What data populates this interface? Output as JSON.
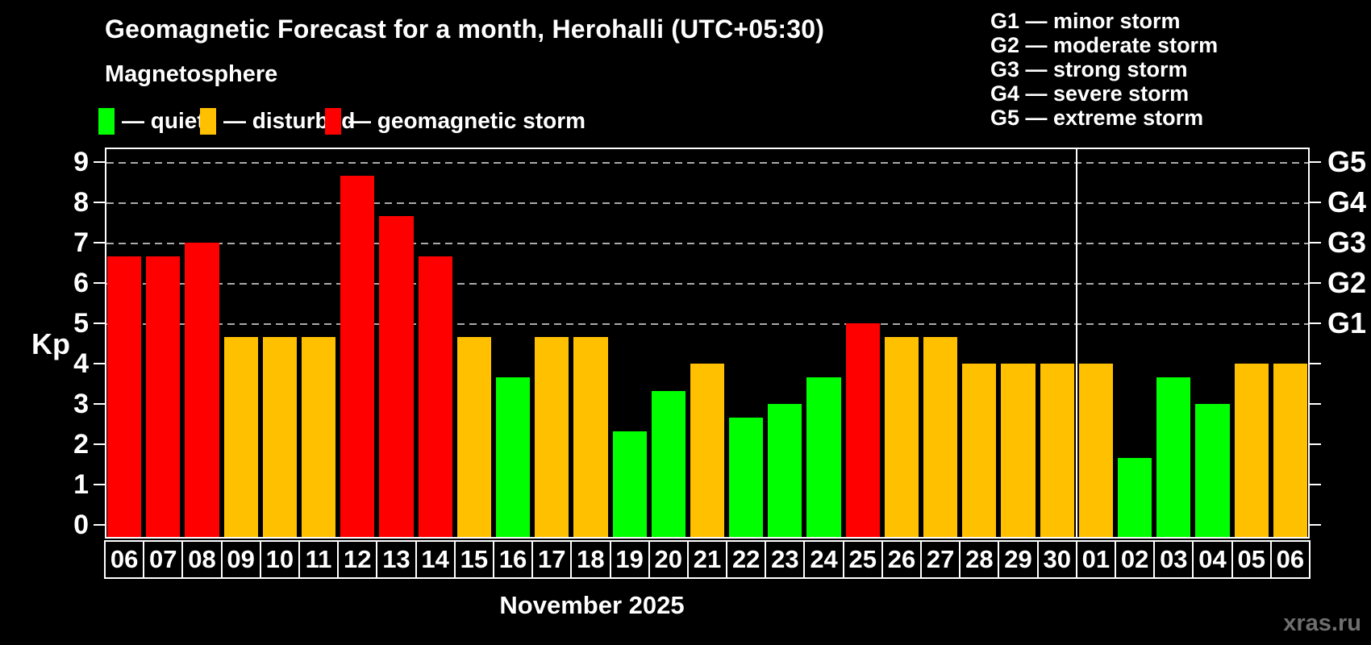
{
  "title": "Geomagnetic Forecast for a month, Herohalli (UTC+05:30)",
  "subtitle": "Magnetosphere",
  "legend": {
    "items": [
      {
        "key": "quiet",
        "label": "— quiet",
        "color": "#00ff00"
      },
      {
        "key": "disturbed",
        "label": "— disturbed",
        "color": "#ffc000"
      },
      {
        "key": "storm",
        "label": "— geomagnetic storm",
        "color": "#ff0000"
      }
    ]
  },
  "g_legend": [
    "G1 — minor storm",
    "G2 — moderate storm",
    "G3 — strong storm",
    "G4 — severe storm",
    "G5 — extreme storm"
  ],
  "axes": {
    "y_label": "Kp",
    "y_ticks": [
      0,
      1,
      2,
      3,
      4,
      5,
      6,
      7,
      8,
      9
    ],
    "gridline_kp": [
      5,
      6,
      7,
      8,
      9
    ],
    "right_labels": [
      {
        "text": "G1",
        "kp": 5
      },
      {
        "text": "G2",
        "kp": 6
      },
      {
        "text": "G3",
        "kp": 7
      },
      {
        "text": "G4",
        "kp": 8
      },
      {
        "text": "G5",
        "kp": 9
      }
    ]
  },
  "x_axis": {
    "month_label": "November 2025",
    "separator_after_index": 24
  },
  "watermark": "xras.ru",
  "chart_data": {
    "type": "bar",
    "title": "Geomagnetic Forecast for a month, Herohalli (UTC+05:30)",
    "ylabel": "Kp",
    "ylim": [
      0,
      9.4
    ],
    "grid": "horizontal dashed at Kp 5,6,7,8,9",
    "legend_position": "top-left",
    "categories": [
      "06",
      "07",
      "08",
      "09",
      "10",
      "11",
      "12",
      "13",
      "14",
      "15",
      "16",
      "17",
      "18",
      "19",
      "20",
      "21",
      "22",
      "23",
      "24",
      "25",
      "26",
      "27",
      "28",
      "29",
      "30",
      "01",
      "02",
      "03",
      "04",
      "05",
      "06"
    ],
    "values": [
      6.67,
      6.67,
      7,
      4.67,
      4.67,
      4.67,
      8.67,
      7.67,
      6.67,
      4.67,
      3.67,
      4.67,
      4.67,
      2.33,
      3.33,
      4,
      2.67,
      3,
      3.67,
      5,
      4.67,
      4.67,
      4,
      4,
      4,
      4,
      1.67,
      3.67,
      3,
      4,
      4
    ],
    "statuses": [
      "storm",
      "storm",
      "storm",
      "disturbed",
      "disturbed",
      "disturbed",
      "storm",
      "storm",
      "storm",
      "disturbed",
      "quiet",
      "disturbed",
      "disturbed",
      "quiet",
      "quiet",
      "disturbed",
      "quiet",
      "quiet",
      "quiet",
      "storm",
      "disturbed",
      "disturbed",
      "disturbed",
      "disturbed",
      "disturbed",
      "disturbed",
      "quiet",
      "quiet",
      "quiet",
      "disturbed",
      "disturbed"
    ],
    "colors": {
      "quiet": "#00ff00",
      "disturbed": "#ffc000",
      "storm": "#ff0000"
    }
  }
}
